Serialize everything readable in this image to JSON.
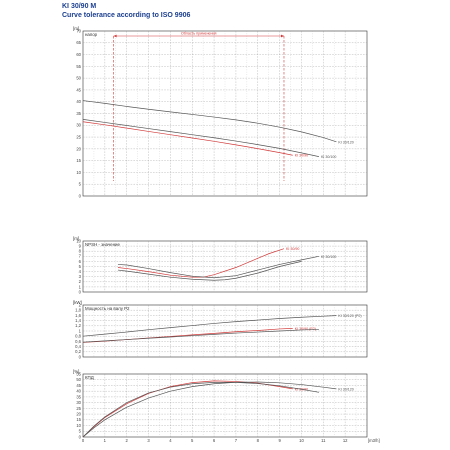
{
  "header": {
    "title": "KI 30/90 M",
    "subtitle": "Curve tolerance according to ISO 9906"
  },
  "colors": {
    "model": "#d23a3a",
    "reference": "#555555",
    "title": "#1b3f8f",
    "grid": "#9a9a9a"
  },
  "chart_data": [
    {
      "type": "line",
      "panel": "head",
      "y_unit_label": "[m]",
      "label": "напор",
      "x_unit_label": "[m3/h]",
      "xlim": [
        0,
        13
      ],
      "ylim": [
        0,
        70
      ],
      "x_ticks": [
        0,
        1,
        2,
        3,
        4,
        5,
        6,
        7,
        8,
        9,
        10,
        11,
        12
      ],
      "y_ticks": [
        0,
        5,
        10,
        15,
        20,
        25,
        30,
        35,
        40,
        45,
        50,
        55,
        60,
        65,
        70
      ],
      "range_label": "Область применения",
      "range_x": [
        1.4,
        9.2
      ],
      "series": [
        {
          "name": "KI 30/120",
          "role": "reference",
          "x": [
            0,
            1,
            2,
            3,
            4,
            5,
            6,
            7,
            8,
            9,
            10,
            11,
            11.6
          ],
          "y": [
            40.5,
            39.3,
            38,
            36.8,
            35.7,
            34.6,
            33.5,
            32.3,
            30.9,
            29.2,
            27.2,
            24.8,
            23
          ]
        },
        {
          "name": "KI 30/100",
          "role": "reference",
          "x": [
            0,
            1,
            2,
            3,
            4,
            5,
            6,
            7,
            8,
            9,
            10,
            10.8
          ],
          "y": [
            32.5,
            31.2,
            29.9,
            28.6,
            27.3,
            26,
            24.7,
            23.3,
            21.8,
            20.2,
            18.3,
            16.7
          ]
        },
        {
          "name": "KI 30/90",
          "role": "model",
          "x": [
            0,
            1,
            2,
            3,
            4,
            5,
            6,
            7,
            8,
            9,
            9.6
          ],
          "y": [
            31.5,
            30.2,
            28.8,
            27.4,
            26,
            24.6,
            23.2,
            21.7,
            20.1,
            18.4,
            17.3
          ]
        }
      ]
    },
    {
      "type": "line",
      "panel": "npsh",
      "y_unit_label": "[m]",
      "label": "NPSH - значение",
      "xlim": [
        0,
        13
      ],
      "ylim": [
        0,
        10
      ],
      "y_ticks": [
        0,
        1,
        2,
        3,
        4,
        5,
        6,
        7,
        8,
        9,
        10
      ],
      "series": [
        {
          "name": "KI 30/90",
          "role": "model",
          "x": [
            1.6,
            2,
            3,
            4,
            5,
            5.5,
            6,
            7,
            8,
            8.5,
            9.2
          ],
          "y": [
            4.8,
            4.6,
            4,
            3.3,
            2.9,
            2.9,
            3.4,
            4.8,
            6.6,
            7.5,
            8.5
          ]
        },
        {
          "name": "KI 30/100",
          "role": "reference",
          "x": [
            1.6,
            2,
            3,
            4,
            5,
            6,
            7,
            8,
            9,
            10,
            10.8
          ],
          "y": [
            5.4,
            5.3,
            4.6,
            3.8,
            3.1,
            2.8,
            3.2,
            4.3,
            5.4,
            6.3,
            7
          ]
        },
        {
          "name": "",
          "role": "reference",
          "x": [
            1.6,
            2,
            3,
            4,
            5,
            6,
            6.5,
            7,
            8,
            9,
            10
          ],
          "y": [
            4.3,
            4.1,
            3.5,
            2.9,
            2.5,
            2.3,
            2.4,
            2.7,
            3.7,
            5,
            6
          ]
        }
      ]
    },
    {
      "type": "line",
      "panel": "power",
      "y_unit_label": "[kW]",
      "label": "Мощность на валу P2",
      "xlim": [
        0,
        13
      ],
      "ylim": [
        0,
        2
      ],
      "y_ticks": [
        0,
        0.2,
        0.4,
        0.6,
        0.8,
        1.0,
        1.2,
        1.4,
        1.6,
        1.8,
        2
      ],
      "y_tick_labels": [
        "0",
        "0,2",
        "0,4",
        "0,6",
        "0,8",
        "1",
        "1,2",
        "1,4",
        "1,6",
        "1,8",
        "2"
      ],
      "series": [
        {
          "name": "KI 30/120 (P2)",
          "role": "reference",
          "x": [
            0,
            1,
            2,
            3,
            4,
            5,
            6,
            7,
            8,
            9,
            10,
            11,
            11.6
          ],
          "y": [
            0.8,
            0.88,
            0.96,
            1.05,
            1.13,
            1.21,
            1.29,
            1.36,
            1.42,
            1.48,
            1.53,
            1.57,
            1.59
          ]
        },
        {
          "name": "KI 30/90 (P2)",
          "role": "model",
          "x": [
            0,
            1,
            2,
            3,
            4,
            5,
            6,
            7,
            8,
            9,
            9.6
          ],
          "y": [
            0.56,
            0.61,
            0.67,
            0.73,
            0.79,
            0.85,
            0.91,
            0.97,
            1.02,
            1.08,
            1.1
          ]
        },
        {
          "name": "",
          "role": "reference",
          "x": [
            0,
            1,
            2,
            3,
            4,
            5,
            6,
            7,
            8,
            9,
            10,
            10.8
          ],
          "y": [
            0.57,
            0.62,
            0.67,
            0.72,
            0.77,
            0.82,
            0.87,
            0.92,
            0.96,
            1.0,
            1.04,
            1.06
          ]
        }
      ]
    },
    {
      "type": "line",
      "panel": "efficiency",
      "y_unit_label": "[%]",
      "label": "КПД",
      "xlim": [
        0,
        13
      ],
      "ylim": [
        0,
        55
      ],
      "y_ticks": [
        0,
        5,
        10,
        15,
        20,
        25,
        30,
        35,
        40,
        45,
        50,
        55
      ],
      "series": [
        {
          "name": "KI 30/90",
          "role": "model",
          "x": [
            0,
            0.5,
            1,
            2,
            3,
            4,
            5,
            6,
            7,
            8,
            9,
            9.6
          ],
          "y": [
            0,
            9,
            17,
            29,
            38,
            44,
            47.5,
            49,
            48.5,
            47,
            44,
            42
          ]
        },
        {
          "name": "KI 30/120",
          "role": "reference",
          "x": [
            0,
            0.5,
            1,
            2,
            3,
            4,
            5,
            6,
            7,
            8,
            9,
            10,
            11,
            11.6
          ],
          "y": [
            0,
            8,
            15,
            26,
            34,
            40,
            44,
            46.5,
            47.8,
            48,
            47.3,
            45.8,
            43.5,
            42
          ]
        },
        {
          "name": "",
          "role": "reference",
          "x": [
            0,
            0.5,
            1,
            2,
            3,
            4,
            5,
            6,
            7,
            8,
            9,
            10,
            10.8
          ],
          "y": [
            0,
            9.5,
            17.5,
            30,
            38.5,
            43.5,
            46.5,
            47.7,
            47.7,
            46.7,
            44.7,
            41.7,
            39
          ]
        }
      ]
    }
  ]
}
